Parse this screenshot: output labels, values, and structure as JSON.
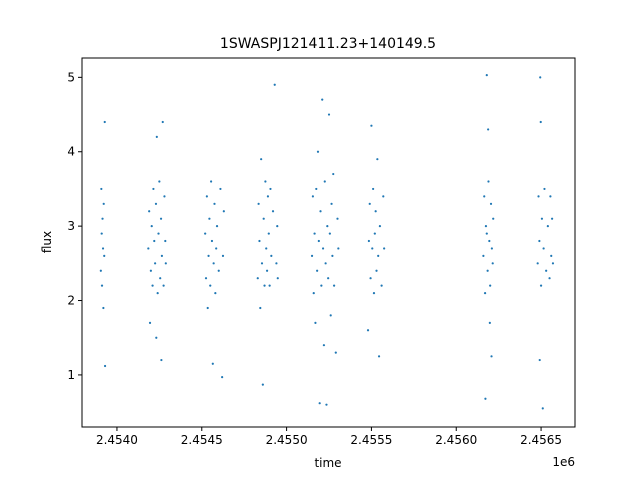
{
  "chart_data": {
    "type": "scatter",
    "title": "1SWASPJ121411.23+140149.5",
    "x_label": "time",
    "y_label": "flux",
    "x_offset_label": "1e6",
    "color": "#1f77b4",
    "xlim": [
      2453794,
      2456700
    ],
    "ylim": [
      0.3,
      5.26
    ],
    "xticks": [
      {
        "value": 2454000,
        "label": "2.4540"
      },
      {
        "value": 2454500,
        "label": "2.4545"
      },
      {
        "value": 2455000,
        "label": "2.4550"
      },
      {
        "value": 2455500,
        "label": "2.4555"
      },
      {
        "value": 2456000,
        "label": "2.4560"
      },
      {
        "value": 2456500,
        "label": "2.4565"
      }
    ],
    "yticks": [
      1,
      2,
      3,
      4,
      5
    ],
    "x": [
      2453905,
      2453908,
      2453910,
      2453912,
      2453915,
      2453918,
      2453920,
      2453922,
      2453925,
      2453928,
      2453930,
      2454185,
      2454190,
      2454195,
      2454200,
      2454205,
      2454210,
      2454215,
      2454220,
      2454225,
      2454230,
      2454235,
      2454240,
      2454245,
      2454250,
      2454255,
      2454260,
      2454265,
      2454270,
      2454275,
      2454280,
      2454285,
      2454288,
      2454232,
      2454262,
      2454520,
      2454525,
      2454530,
      2454535,
      2454540,
      2454545,
      2454550,
      2454555,
      2454560,
      2454565,
      2454570,
      2454575,
      2454580,
      2454585,
      2454590,
      2454600,
      2454610,
      2454620,
      2454625,
      2454630,
      2454830,
      2454835,
      2454840,
      2454845,
      2454850,
      2454855,
      2454860,
      2454865,
      2454870,
      2454875,
      2454880,
      2454885,
      2454890,
      2454895,
      2454900,
      2454905,
      2454910,
      2454920,
      2454930,
      2454940,
      2454945,
      2454948,
      2455150,
      2455155,
      2455160,
      2455165,
      2455170,
      2455175,
      2455180,
      2455185,
      2455190,
      2455195,
      2455200,
      2455205,
      2455210,
      2455215,
      2455220,
      2455225,
      2455230,
      2455235,
      2455240,
      2455245,
      2455250,
      2455255,
      2455260,
      2455265,
      2455270,
      2455275,
      2455280,
      2455290,
      2455300,
      2455305,
      2455480,
      2455485,
      2455490,
      2455495,
      2455500,
      2455505,
      2455510,
      2455515,
      2455520,
      2455525,
      2455530,
      2455535,
      2455540,
      2455545,
      2455550,
      2455560,
      2455570,
      2455575,
      2456160,
      2456165,
      2456170,
      2456175,
      2456180,
      2456185,
      2456190,
      2456195,
      2456200,
      2456205,
      2456210,
      2456215,
      2456218,
      2456172,
      2456188,
      2456198,
      2456208,
      2456180,
      2456480,
      2456485,
      2456490,
      2456495,
      2456500,
      2456505,
      2456510,
      2456515,
      2456520,
      2456530,
      2456540,
      2456550,
      2456555,
      2456560,
      2456565,
      2456570,
      2456492,
      2456498
    ],
    "values": [
      2.4,
      3.5,
      2.9,
      2.2,
      3.1,
      2.7,
      1.9,
      3.3,
      2.6,
      4.4,
      1.12,
      2.7,
      3.2,
      1.7,
      2.4,
      3.0,
      2.2,
      3.5,
      2.8,
      2.5,
      3.3,
      4.2,
      2.1,
      2.9,
      3.6,
      2.3,
      3.1,
      2.6,
      4.4,
      2.2,
      3.4,
      2.8,
      2.5,
      1.5,
      1.2,
      2.9,
      2.3,
      3.4,
      1.9,
      2.6,
      3.1,
      2.2,
      3.6,
      2.8,
      1.15,
      2.5,
      3.3,
      2.1,
      2.7,
      3.0,
      2.4,
      3.5,
      0.97,
      2.6,
      3.2,
      2.3,
      3.3,
      2.8,
      1.9,
      3.9,
      2.5,
      0.87,
      3.1,
      2.2,
      3.6,
      2.7,
      2.4,
      3.4,
      2.9,
      2.2,
      3.5,
      2.6,
      3.2,
      4.9,
      2.5,
      3.0,
      2.3,
      2.6,
      3.4,
      2.1,
      2.9,
      1.7,
      3.5,
      2.4,
      4.0,
      2.8,
      0.62,
      3.2,
      2.2,
      4.7,
      2.7,
      1.4,
      3.6,
      2.5,
      0.6,
      3.0,
      2.3,
      4.5,
      2.9,
      1.8,
      3.3,
      2.6,
      3.7,
      2.2,
      1.3,
      3.1,
      2.7,
      1.6,
      2.8,
      3.3,
      2.3,
      4.35,
      2.7,
      3.5,
      2.1,
      2.9,
      3.2,
      2.4,
      3.9,
      2.6,
      1.25,
      3.0,
      2.2,
      3.4,
      2.7,
      2.6,
      3.4,
      2.1,
      3.0,
      5.03,
      2.4,
      3.6,
      2.8,
      2.2,
      3.3,
      2.7,
      2.5,
      3.1,
      0.68,
      4.3,
      1.7,
      1.25,
      2.9,
      2.5,
      3.4,
      2.8,
      5.0,
      2.2,
      3.1,
      0.55,
      2.7,
      3.5,
      2.4,
      3.0,
      2.3,
      3.4,
      2.6,
      3.1,
      2.5,
      1.2,
      4.4
    ]
  }
}
